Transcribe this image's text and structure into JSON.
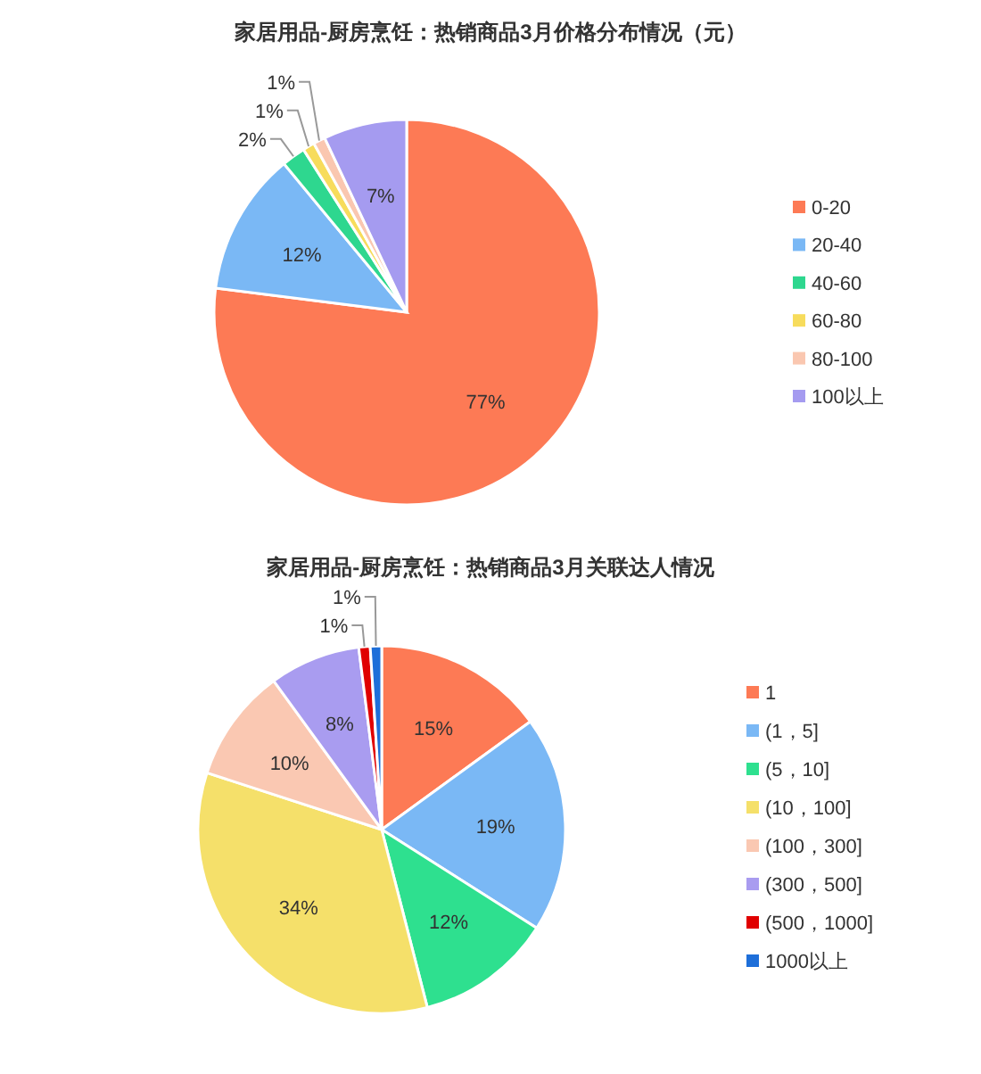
{
  "chart_data": [
    {
      "type": "pie",
      "title": "家居用品-厨房烹饪：热销商品3月价格分布情况（元）",
      "categories": [
        "0-20",
        "20-40",
        "40-60",
        "60-80",
        "80-100",
        "100以上"
      ],
      "values": [
        77,
        12,
        2,
        1,
        1,
        7
      ],
      "value_labels": [
        "77%",
        "12%",
        "2%",
        "1%",
        "1%",
        "7%"
      ],
      "colors": [
        "#fd7a55",
        "#7ab8f5",
        "#2ed78f",
        "#f7dc5c",
        "#fac7b0",
        "#a59bf0"
      ],
      "legend": "right"
    },
    {
      "type": "pie",
      "title": "家居用品-厨房烹饪：热销商品3月关联达人情况",
      "categories": [
        "1",
        "(1，5]",
        "(5，10]",
        "(10，100]",
        "(100，300]",
        "(300，500]",
        "(500，1000]",
        "1000以上"
      ],
      "values": [
        15,
        19,
        12,
        34,
        10,
        8,
        1,
        1
      ],
      "value_labels": [
        "15%",
        "19%",
        "12%",
        "34%",
        "10%",
        "8%",
        "1%",
        "1%"
      ],
      "colors": [
        "#fd7a55",
        "#7ab8f5",
        "#2ee08f",
        "#f5e06a",
        "#fac8b2",
        "#a99cf0",
        "#e00000",
        "#1e6fd9"
      ],
      "legend": "right"
    }
  ]
}
